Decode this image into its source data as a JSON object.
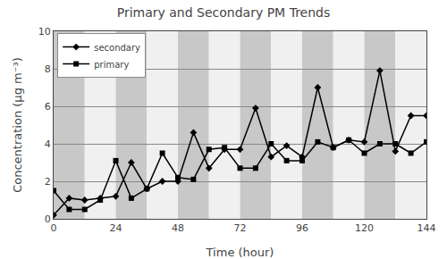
{
  "chart_data": {
    "type": "line",
    "title": "Primary and Secondary PM Trends",
    "x_label": "Time (hour)",
    "y_label": "Concentration (μg m⁻³)",
    "x": [
      0,
      6,
      12,
      18,
      24,
      30,
      36,
      42,
      48,
      54,
      60,
      66,
      72,
      78,
      84,
      90,
      96,
      102,
      108,
      114,
      120,
      126,
      132,
      138,
      144
    ],
    "series": [
      {
        "name": "secondary",
        "color": "#000000",
        "marker": "diamond",
        "values": [
          0.2,
          1.1,
          1.0,
          1.1,
          1.2,
          3.0,
          1.6,
          2.0,
          2.0,
          4.6,
          2.7,
          3.7,
          3.7,
          5.9,
          3.3,
          3.9,
          3.3,
          7.0,
          3.8,
          4.2,
          4.1,
          7.9,
          3.6,
          5.5,
          5.5
        ]
      },
      {
        "name": "primary",
        "color": "#000000",
        "marker": "square",
        "values": [
          1.5,
          0.5,
          0.5,
          1.0,
          3.1,
          1.1,
          1.6,
          3.5,
          2.2,
          2.1,
          3.7,
          3.8,
          2.7,
          2.7,
          4.0,
          3.1,
          3.1,
          4.1,
          3.8,
          4.2,
          3.5,
          4.0,
          4.0,
          3.5,
          4.1
        ]
      }
    ],
    "bands": [
      {
        "x0": 0,
        "x1": 12,
        "color": "#c8c8c8"
      },
      {
        "x0": 12,
        "x1": 24,
        "color": "#f0f0f0"
      },
      {
        "x0": 24,
        "x1": 36,
        "color": "#c8c8c8"
      },
      {
        "x0": 36,
        "x1": 48,
        "color": "#f0f0f0"
      },
      {
        "x0": 48,
        "x1": 60,
        "color": "#c8c8c8"
      },
      {
        "x0": 60,
        "x1": 72,
        "color": "#f0f0f0"
      },
      {
        "x0": 72,
        "x1": 84,
        "color": "#c8c8c8"
      },
      {
        "x0": 84,
        "x1": 96,
        "color": "#f0f0f0"
      },
      {
        "x0": 96,
        "x1": 108,
        "color": "#c8c8c8"
      },
      {
        "x0": 108,
        "x1": 120,
        "color": "#f0f0f0"
      },
      {
        "x0": 120,
        "x1": 132,
        "color": "#c8c8c8"
      },
      {
        "x0": 132,
        "x1": 144,
        "color": "#f0f0f0"
      }
    ],
    "xlim": [
      0,
      144
    ],
    "ylim": [
      0,
      10
    ],
    "xticks": [
      0,
      24,
      48,
      72,
      96,
      120,
      144
    ],
    "yticks": [
      0,
      2,
      4,
      6,
      8,
      10
    ],
    "grid": "y",
    "legend": "upper left"
  }
}
